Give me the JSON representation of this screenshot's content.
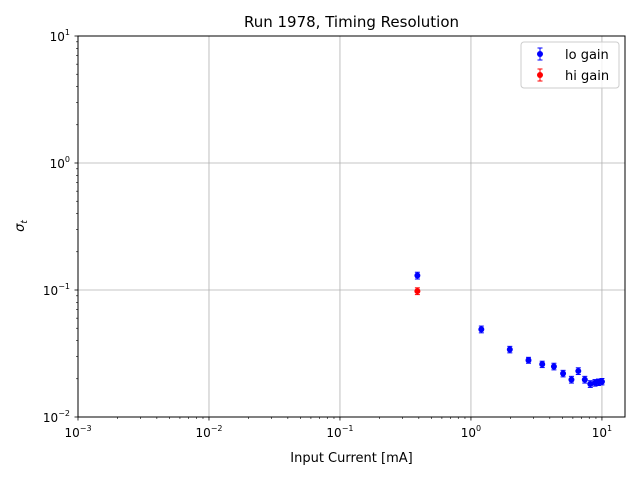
{
  "chart_data": {
    "type": "scatter",
    "title": "Run 1978, Timing Resolution",
    "xlabel": "Input Current [mA]",
    "ylabel_base": "σ",
    "ylabel_sub": "t",
    "xscale": "log",
    "yscale": "log",
    "xlim": [
      0.001,
      15
    ],
    "ylim": [
      0.01,
      10
    ],
    "grid": true,
    "legend_position": "top-right",
    "x_ticks": [
      {
        "value": 0.001,
        "mantissa": "10",
        "exp": "−3"
      },
      {
        "value": 0.01,
        "mantissa": "10",
        "exp": "−2"
      },
      {
        "value": 0.1,
        "mantissa": "10",
        "exp": "−1"
      },
      {
        "value": 1,
        "mantissa": "10",
        "exp": "0"
      },
      {
        "value": 10,
        "mantissa": "10",
        "exp": "1"
      }
    ],
    "y_ticks": [
      {
        "value": 0.01,
        "mantissa": "10",
        "exp": "−2"
      },
      {
        "value": 0.1,
        "mantissa": "10",
        "exp": "−1"
      },
      {
        "value": 1,
        "mantissa": "10",
        "exp": "0"
      },
      {
        "value": 10,
        "mantissa": "10",
        "exp": "1"
      }
    ],
    "series": [
      {
        "name": "lo gain",
        "color": "#0000ff",
        "points": [
          {
            "x": 0.39,
            "y": 0.13,
            "err": 0.008
          },
          {
            "x": 1.2,
            "y": 0.049,
            "err": 0.003
          },
          {
            "x": 1.98,
            "y": 0.034,
            "err": 0.002
          },
          {
            "x": 2.75,
            "y": 0.028,
            "err": 0.0015
          },
          {
            "x": 3.5,
            "y": 0.026,
            "err": 0.0015
          },
          {
            "x": 4.3,
            "y": 0.025,
            "err": 0.0015
          },
          {
            "x": 5.05,
            "y": 0.022,
            "err": 0.0013
          },
          {
            "x": 5.85,
            "y": 0.0197,
            "err": 0.0012
          },
          {
            "x": 6.6,
            "y": 0.023,
            "err": 0.0014
          },
          {
            "x": 7.4,
            "y": 0.0197,
            "err": 0.0012
          },
          {
            "x": 8.15,
            "y": 0.0182,
            "err": 0.0011
          },
          {
            "x": 8.85,
            "y": 0.0186,
            "err": 0.0011
          },
          {
            "x": 9.4,
            "y": 0.0188,
            "err": 0.0011
          },
          {
            "x": 10.0,
            "y": 0.019,
            "err": 0.0011
          }
        ]
      },
      {
        "name": "hi gain",
        "color": "#ff0000",
        "points": [
          {
            "x": 0.39,
            "y": 0.098,
            "err": 0.006
          }
        ]
      }
    ]
  }
}
